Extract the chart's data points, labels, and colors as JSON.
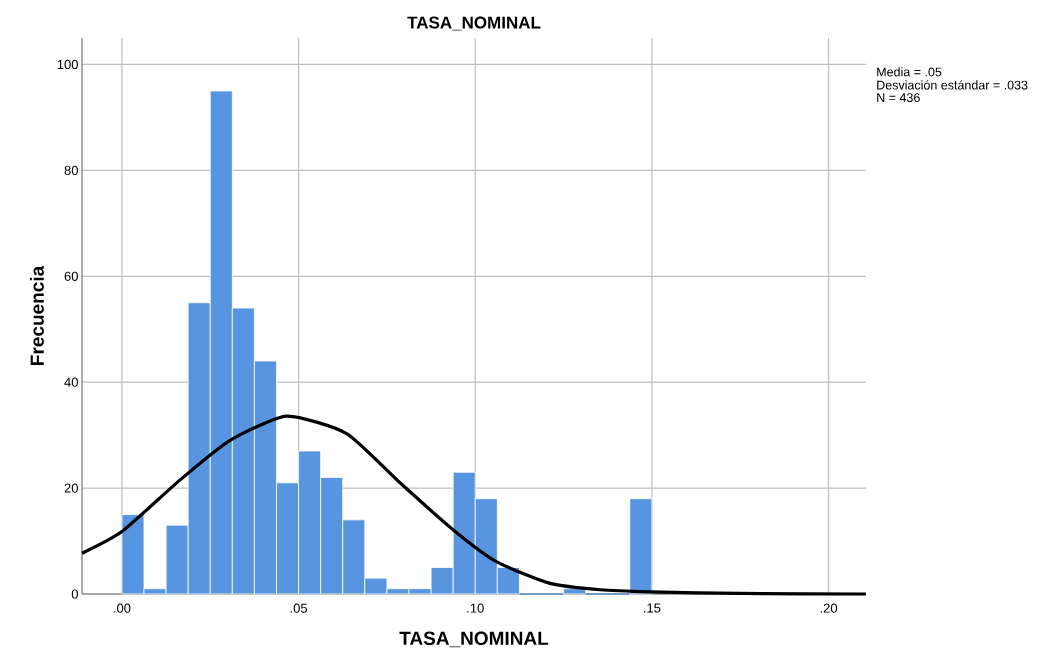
{
  "chart_data": {
    "type": "histogram",
    "title": "TASA_NOMINAL",
    "xlabel": "TASA_NOMINAL",
    "ylabel": "Frecuencia",
    "bins": [
      0,
      0.00625,
      0.0125,
      0.01875,
      0.025,
      0.03125,
      0.0375,
      0.04375,
      0.05,
      0.05625,
      0.0625,
      0.06875,
      0.075,
      0.08125,
      0.0875,
      0.09375,
      0.1,
      0.10625,
      0.1125,
      0.11875,
      0.125,
      0.13125,
      0.1375,
      0.14375,
      0.15
    ],
    "values": [
      15,
      1,
      13,
      55,
      95,
      54,
      44,
      21,
      27,
      22,
      14,
      3,
      1,
      1,
      5,
      23,
      18,
      5,
      0,
      0,
      1,
      0,
      0,
      18
    ],
    "color": "#5895e0",
    "series": [
      {
        "type": "line",
        "color": "#000000",
        "x": [
          -0.0113,
          0,
          0.0164,
          0.0306,
          0.0466,
          0.0636,
          0.0787,
          0.0938,
          0.106,
          0.1212,
          0.1353,
          0.1495,
          0.175,
          0.2106
        ],
        "values": [
          7.7,
          11.8,
          21.5,
          29,
          33.6,
          30.3,
          21,
          12.1,
          6.1,
          2,
          0.8,
          0.4,
          0.1,
          0
        ]
      }
    ],
    "xlim": [
      -0.0113,
      0.2106
    ],
    "ylim": [
      0,
      105
    ],
    "xticks": [
      {
        "value": 0,
        "label": ".00"
      },
      {
        "value": 0.05,
        "label": ".05"
      },
      {
        "value": 0.1,
        "label": ".10"
      },
      {
        "value": 0.15,
        "label": ".15"
      },
      {
        "value": 0.2,
        "label": ".20"
      }
    ],
    "yticks": [
      0,
      20,
      40,
      60,
      80,
      100
    ],
    "grid": true,
    "annotations": [
      "Media = .05",
      "Desviación estándar = .033",
      "N = 436"
    ]
  }
}
